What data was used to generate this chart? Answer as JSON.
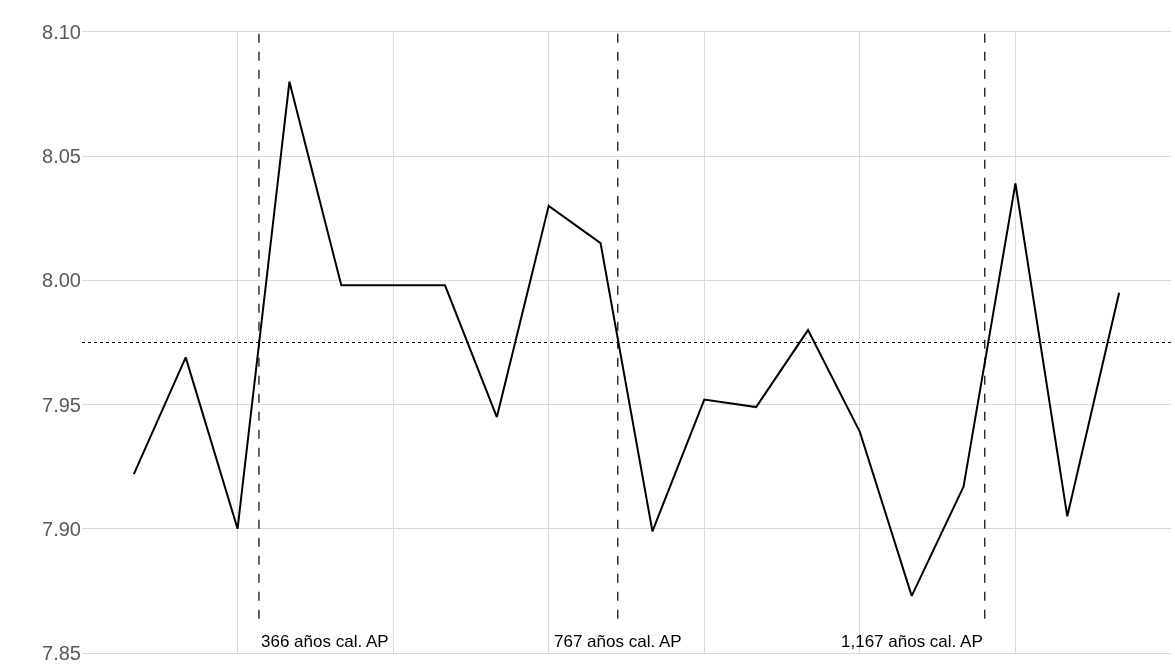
{
  "chart_data": {
    "type": "line",
    "categories": [
      null,
      null,
      null,
      null,
      null,
      null,
      null,
      null,
      null,
      null,
      null,
      null,
      null,
      null,
      null,
      null,
      null,
      null,
      null,
      null
    ],
    "series": [
      {
        "color": "#000000",
        "values": [
          7.922,
          7.969,
          7.9,
          8.08,
          7.998,
          7.998,
          7.998,
          7.945,
          8.03,
          8.015,
          7.899,
          7.952,
          7.949,
          7.98,
          7.939,
          7.873,
          7.917,
          8.039,
          7.905,
          7.995
        ]
      }
    ],
    "ylim": [
      7.85,
      8.1
    ],
    "yticks": [
      7.85,
      {
        "value": 7.9,
        "label": "7.90"
      },
      7.95,
      {
        "value": 8.0,
        "label": "8.00"
      },
      8.05,
      {
        "value": 8.1,
        "label": "8.10"
      }
    ],
    "tick_labels": "y",
    "grid": true,
    "marker": "none",
    "line_style": "solid",
    "annotations": [
      "366 años cal. AP",
      "767 años cal. AP",
      "1,167 años cal. AP"
    ],
    "ref_lines": [
      {
        "axis": "y",
        "value": 7.975,
        "line_style": "dotted"
      }
    ]
  }
}
